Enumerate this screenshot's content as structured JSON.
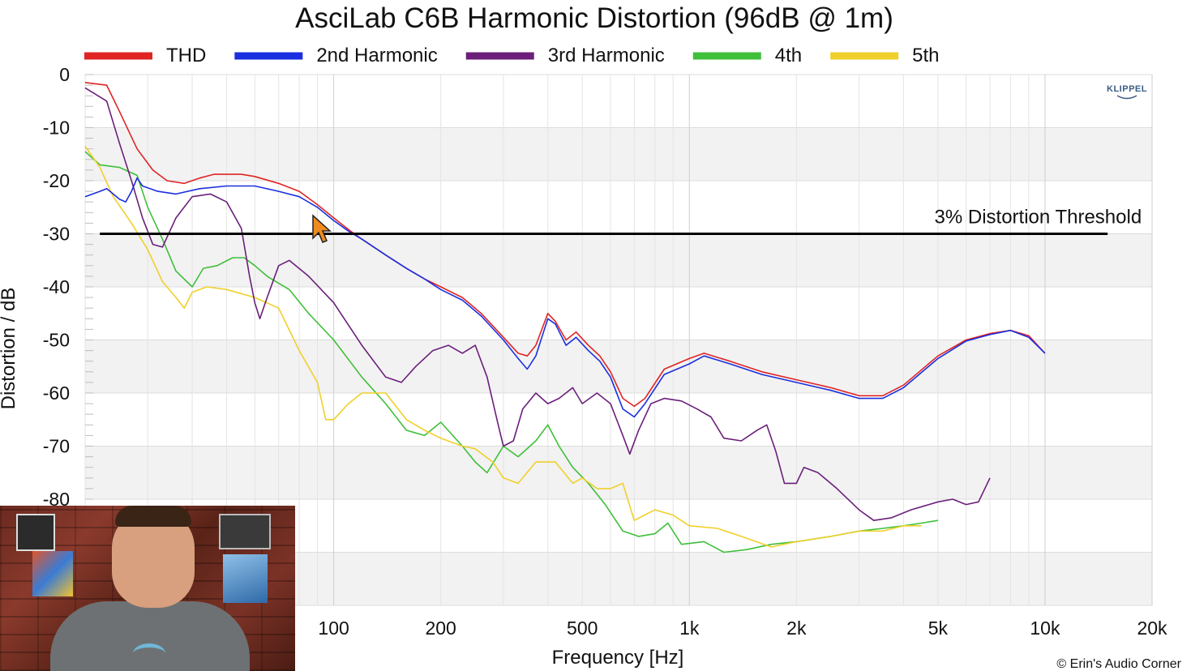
{
  "chart_data": {
    "type": "line",
    "title": "AsciLab C6B Harmonic Distortion (96dB @ 1m)",
    "xlabel": "Frequency [Hz]",
    "ylabel": "Distortion / dB",
    "xscale": "log",
    "xlim": [
      20,
      20000
    ],
    "ylim": [
      -100,
      0
    ],
    "x_ticks": [
      100,
      200,
      500,
      1000,
      2000,
      5000,
      10000,
      20000
    ],
    "x_tick_labels": [
      "100",
      "200",
      "500",
      "1k",
      "2k",
      "5k",
      "10k",
      "20k"
    ],
    "y_ticks": [
      0,
      -10,
      -20,
      -30,
      -40,
      -50,
      -60,
      -70,
      -80
    ],
    "y_tick_labels": [
      "0",
      "-10",
      "-20",
      "-30",
      "-40",
      "-50",
      "-60",
      "-70",
      "-80"
    ],
    "grid": true,
    "legend_position": "top",
    "reference_line": {
      "label": "3% Distortion Threshold",
      "y": -30,
      "x_range": [
        22,
        15000
      ]
    },
    "brand": "KLIPPEL",
    "copyright": "© Erin's Audio Corner",
    "series": [
      {
        "name": "THD",
        "color": "#e02424",
        "points": [
          [
            20,
            -1.5
          ],
          [
            23,
            -2
          ],
          [
            25,
            -7
          ],
          [
            28,
            -14
          ],
          [
            31,
            -18
          ],
          [
            34,
            -20
          ],
          [
            38,
            -20.5
          ],
          [
            42,
            -19.5
          ],
          [
            46,
            -18.8
          ],
          [
            55,
            -18.8
          ],
          [
            60,
            -19.2
          ],
          [
            70,
            -20.5
          ],
          [
            80,
            -22
          ],
          [
            90,
            -24.5
          ],
          [
            100,
            -27
          ],
          [
            110,
            -29.2
          ],
          [
            120,
            -31
          ],
          [
            140,
            -34
          ],
          [
            160,
            -36.5
          ],
          [
            180,
            -38.5
          ],
          [
            200,
            -40
          ],
          [
            230,
            -42
          ],
          [
            260,
            -45
          ],
          [
            300,
            -49.5
          ],
          [
            330,
            -52.5
          ],
          [
            350,
            -53
          ],
          [
            370,
            -51
          ],
          [
            400,
            -45
          ],
          [
            420,
            -46.5
          ],
          [
            450,
            -50
          ],
          [
            480,
            -48.5
          ],
          [
            520,
            -51
          ],
          [
            560,
            -53
          ],
          [
            600,
            -56
          ],
          [
            650,
            -61
          ],
          [
            700,
            -62.5
          ],
          [
            750,
            -61
          ],
          [
            850,
            -55.5
          ],
          [
            1000,
            -53.5
          ],
          [
            1100,
            -52.5
          ],
          [
            1300,
            -54
          ],
          [
            1600,
            -56
          ],
          [
            2000,
            -57.5
          ],
          [
            2500,
            -59
          ],
          [
            3000,
            -60.5
          ],
          [
            3500,
            -60.5
          ],
          [
            4000,
            -58.5
          ],
          [
            5000,
            -53
          ],
          [
            6000,
            -50
          ],
          [
            7000,
            -48.8
          ],
          [
            8000,
            -48.2
          ],
          [
            9000,
            -49.2
          ],
          [
            10000,
            -52.5
          ]
        ]
      },
      {
        "name": "2nd Harmonic",
        "color": "#1a2fe0",
        "points": [
          [
            20,
            -23
          ],
          [
            22,
            -22
          ],
          [
            23,
            -21.5
          ],
          [
            25,
            -23.5
          ],
          [
            26,
            -24
          ],
          [
            27,
            -22
          ],
          [
            28,
            -19.5
          ],
          [
            29,
            -21
          ],
          [
            32,
            -22
          ],
          [
            36,
            -22.5
          ],
          [
            42,
            -21.5
          ],
          [
            50,
            -21
          ],
          [
            60,
            -21
          ],
          [
            70,
            -22
          ],
          [
            80,
            -23
          ],
          [
            90,
            -25
          ],
          [
            100,
            -27.5
          ],
          [
            110,
            -29.5
          ],
          [
            120,
            -31
          ],
          [
            140,
            -34
          ],
          [
            160,
            -36.5
          ],
          [
            180,
            -38.5
          ],
          [
            200,
            -40.5
          ],
          [
            230,
            -42.5
          ],
          [
            260,
            -45.5
          ],
          [
            300,
            -50
          ],
          [
            330,
            -53.5
          ],
          [
            350,
            -55.5
          ],
          [
            370,
            -53
          ],
          [
            400,
            -46
          ],
          [
            420,
            -47
          ],
          [
            450,
            -51
          ],
          [
            480,
            -49.5
          ],
          [
            520,
            -52
          ],
          [
            560,
            -54
          ],
          [
            600,
            -57
          ],
          [
            650,
            -63
          ],
          [
            700,
            -64.5
          ],
          [
            750,
            -62
          ],
          [
            850,
            -56.5
          ],
          [
            1000,
            -54.5
          ],
          [
            1100,
            -53
          ],
          [
            1300,
            -54.5
          ],
          [
            1600,
            -56.5
          ],
          [
            2000,
            -58
          ],
          [
            2500,
            -59.5
          ],
          [
            3000,
            -61
          ],
          [
            3500,
            -61
          ],
          [
            4000,
            -59
          ],
          [
            5000,
            -53.5
          ],
          [
            6000,
            -50.2
          ],
          [
            7000,
            -49
          ],
          [
            8000,
            -48.2
          ],
          [
            9000,
            -49.5
          ],
          [
            10000,
            -52.5
          ]
        ]
      },
      {
        "name": "3rd Harmonic",
        "color": "#6b1f7a",
        "points": [
          [
            20,
            -2.5
          ],
          [
            23,
            -5
          ],
          [
            25,
            -13
          ],
          [
            27,
            -20
          ],
          [
            29,
            -27
          ],
          [
            31,
            -32
          ],
          [
            33,
            -32.5
          ],
          [
            36,
            -27
          ],
          [
            40,
            -23
          ],
          [
            45,
            -22.5
          ],
          [
            50,
            -24
          ],
          [
            55,
            -29
          ],
          [
            58,
            -38
          ],
          [
            60,
            -43
          ],
          [
            62,
            -46
          ],
          [
            65,
            -42
          ],
          [
            70,
            -36
          ],
          [
            75,
            -35
          ],
          [
            85,
            -38
          ],
          [
            100,
            -43
          ],
          [
            120,
            -51
          ],
          [
            140,
            -57
          ],
          [
            155,
            -58
          ],
          [
            170,
            -55
          ],
          [
            190,
            -52
          ],
          [
            210,
            -51
          ],
          [
            230,
            -52.5
          ],
          [
            250,
            -51
          ],
          [
            270,
            -57
          ],
          [
            290,
            -66
          ],
          [
            300,
            -70
          ],
          [
            320,
            -69
          ],
          [
            340,
            -63
          ],
          [
            370,
            -60
          ],
          [
            400,
            -62
          ],
          [
            430,
            -61
          ],
          [
            470,
            -59
          ],
          [
            500,
            -62
          ],
          [
            550,
            -60
          ],
          [
            600,
            -62
          ],
          [
            650,
            -68
          ],
          [
            680,
            -71.5
          ],
          [
            720,
            -67
          ],
          [
            780,
            -62
          ],
          [
            850,
            -61
          ],
          [
            950,
            -61.5
          ],
          [
            1050,
            -63
          ],
          [
            1150,
            -64.5
          ],
          [
            1250,
            -68.5
          ],
          [
            1400,
            -69
          ],
          [
            1550,
            -67
          ],
          [
            1650,
            -66
          ],
          [
            1750,
            -71
          ],
          [
            1850,
            -77
          ],
          [
            2000,
            -77
          ],
          [
            2100,
            -74
          ],
          [
            2300,
            -75
          ],
          [
            2600,
            -78
          ],
          [
            3000,
            -82
          ],
          [
            3300,
            -84
          ],
          [
            3700,
            -83.5
          ],
          [
            4200,
            -82
          ],
          [
            5000,
            -80.5
          ],
          [
            5500,
            -80
          ],
          [
            6000,
            -81
          ],
          [
            6500,
            -80.5
          ],
          [
            7000,
            -76
          ]
        ]
      },
      {
        "name": "4th",
        "color": "#3fbf3a",
        "points": [
          [
            20,
            -14.5
          ],
          [
            22,
            -17
          ],
          [
            25,
            -17.5
          ],
          [
            28,
            -19
          ],
          [
            30,
            -25
          ],
          [
            33,
            -31
          ],
          [
            36,
            -37
          ],
          [
            40,
            -40
          ],
          [
            43,
            -36.5
          ],
          [
            47,
            -36
          ],
          [
            52,
            -34.5
          ],
          [
            56,
            -34.5
          ],
          [
            60,
            -36
          ],
          [
            65,
            -38
          ],
          [
            75,
            -40.5
          ],
          [
            85,
            -45
          ],
          [
            100,
            -50
          ],
          [
            120,
            -57
          ],
          [
            140,
            -62
          ],
          [
            160,
            -67
          ],
          [
            180,
            -68
          ],
          [
            200,
            -65.5
          ],
          [
            230,
            -70
          ],
          [
            250,
            -73
          ],
          [
            270,
            -75
          ],
          [
            300,
            -70
          ],
          [
            330,
            -72
          ],
          [
            370,
            -69
          ],
          [
            400,
            -66
          ],
          [
            430,
            -70
          ],
          [
            470,
            -74
          ],
          [
            520,
            -77
          ],
          [
            580,
            -81
          ],
          [
            650,
            -86
          ],
          [
            720,
            -87
          ],
          [
            800,
            -86.5
          ],
          [
            870,
            -84.5
          ],
          [
            950,
            -88.5
          ],
          [
            1100,
            -88
          ],
          [
            1250,
            -90
          ],
          [
            1450,
            -89.5
          ],
          [
            1700,
            -88.5
          ],
          [
            2000,
            -88
          ],
          [
            2500,
            -87
          ],
          [
            3000,
            -86
          ],
          [
            3500,
            -85.5
          ],
          [
            4000,
            -85
          ],
          [
            4500,
            -84.5
          ],
          [
            5000,
            -84
          ]
        ]
      },
      {
        "name": "5th",
        "color": "#f0d02a",
        "points": [
          [
            20,
            -13.5
          ],
          [
            22,
            -17.5
          ],
          [
            24,
            -23
          ],
          [
            27,
            -28
          ],
          [
            30,
            -33
          ],
          [
            33,
            -39
          ],
          [
            36,
            -42
          ],
          [
            38,
            -44
          ],
          [
            40,
            -41
          ],
          [
            44,
            -40
          ],
          [
            50,
            -40.5
          ],
          [
            60,
            -42
          ],
          [
            70,
            -44
          ],
          [
            80,
            -52
          ],
          [
            90,
            -58
          ],
          [
            95,
            -65
          ],
          [
            100,
            -65
          ],
          [
            110,
            -62
          ],
          [
            120,
            -60
          ],
          [
            140,
            -60
          ],
          [
            160,
            -65
          ],
          [
            180,
            -67
          ],
          [
            200,
            -68.5
          ],
          [
            230,
            -70
          ],
          [
            250,
            -70.5
          ],
          [
            280,
            -73
          ],
          [
            300,
            -76
          ],
          [
            330,
            -77
          ],
          [
            370,
            -73
          ],
          [
            420,
            -73
          ],
          [
            470,
            -77
          ],
          [
            500,
            -76
          ],
          [
            550,
            -78
          ],
          [
            600,
            -78
          ],
          [
            650,
            -77
          ],
          [
            700,
            -84
          ],
          [
            800,
            -82
          ],
          [
            900,
            -83
          ],
          [
            1000,
            -85
          ],
          [
            1200,
            -85.5
          ],
          [
            1400,
            -87
          ],
          [
            1700,
            -89
          ],
          [
            2000,
            -88
          ],
          [
            2500,
            -87
          ],
          [
            3000,
            -86
          ],
          [
            3500,
            -86
          ],
          [
            4000,
            -85
          ],
          [
            4500,
            -85
          ]
        ]
      }
    ]
  }
}
